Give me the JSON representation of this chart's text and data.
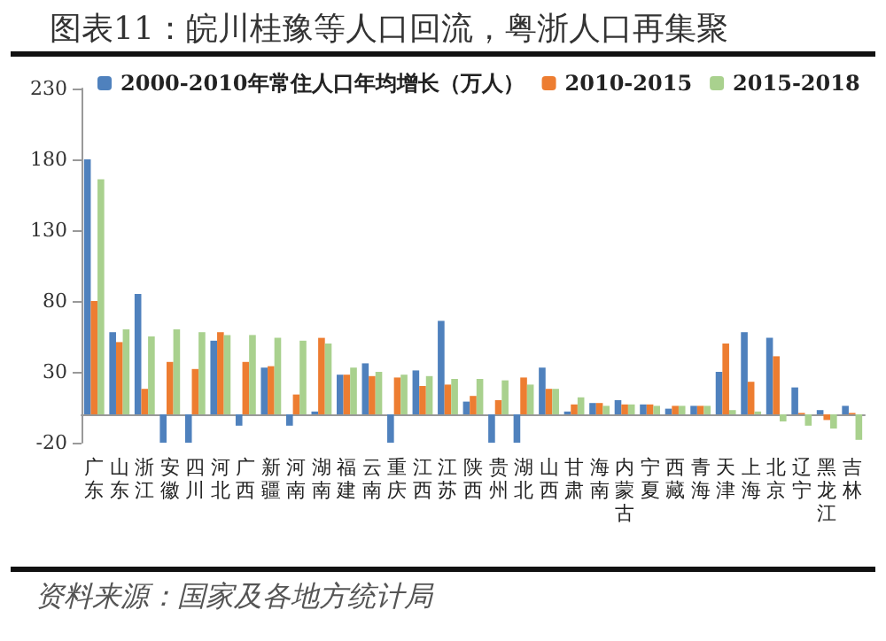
{
  "chart_data": {
    "type": "bar",
    "title": "图表11：皖川桂豫等人口回流，粤浙人口再集聚",
    "annotations": [
      "资料来源：国家及各地方统计局"
    ],
    "categories": [
      "广东",
      "山东",
      "浙江",
      "安徽",
      "四川",
      "河北",
      "广西",
      "新疆",
      "河南",
      "湖南",
      "福建",
      "云南",
      "重庆",
      "江西",
      "江苏",
      "陕西",
      "贵州",
      "湖北",
      "山西",
      "甘肃",
      "海南",
      "内蒙古",
      "宁夏",
      "西藏",
      "青海",
      "天津",
      "上海",
      "北京",
      "辽宁",
      "黑龙江",
      "吉林"
    ],
    "series": [
      {
        "name": "2000-2010年常住人口年均增长（万人）",
        "color": "#4f81bd",
        "values": [
          180,
          58,
          85,
          -20,
          -20,
          52,
          -8,
          33,
          -8,
          2,
          28,
          36,
          -20,
          31,
          66,
          9,
          -20,
          -20,
          33,
          2,
          8,
          10,
          7,
          4,
          6,
          30,
          58,
          54,
          19,
          3,
          6
        ]
      },
      {
        "name": "2010-2015",
        "color": "#ed7d31",
        "values": [
          80,
          51,
          18,
          37,
          32,
          58,
          37,
          34,
          14,
          54,
          28,
          27,
          26,
          20,
          21,
          13,
          10,
          26,
          18,
          7,
          8,
          7,
          7,
          6,
          6,
          50,
          23,
          41,
          1,
          -4,
          1
        ]
      },
      {
        "name": "2015-2018",
        "color": "#a9d18e",
        "values": [
          166,
          60,
          55,
          60,
          58,
          56,
          56,
          54,
          52,
          50,
          33,
          30,
          28,
          27,
          25,
          25,
          24,
          21,
          18,
          12,
          6,
          7,
          6,
          6,
          6,
          3,
          2,
          -5,
          -8,
          -10,
          -18
        ]
      }
    ],
    "ylim": [
      -20,
      230
    ],
    "yticks": [
      -20,
      30,
      80,
      130,
      180,
      230
    ],
    "grid": false,
    "legend": "top"
  }
}
